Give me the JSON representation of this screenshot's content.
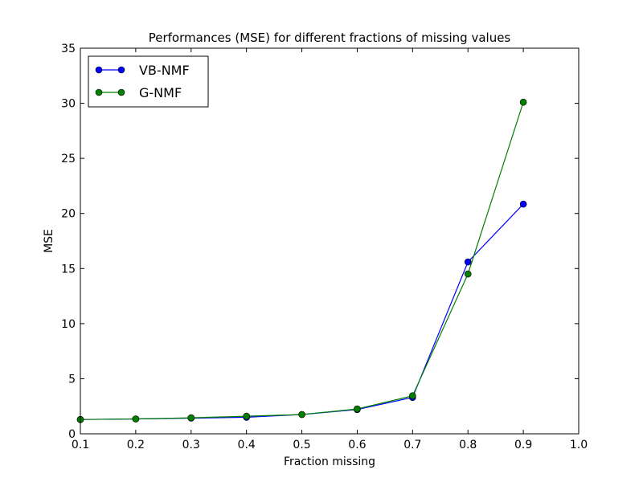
{
  "chart_data": {
    "type": "line",
    "title": "Performances (MSE) for different fractions of missing values",
    "xlabel": "Fraction missing",
    "ylabel": "MSE",
    "xlim": [
      0.1,
      1.0
    ],
    "ylim": [
      0,
      35
    ],
    "x_ticks": [
      "0.1",
      "0.2",
      "0.3",
      "0.4",
      "0.5",
      "0.6",
      "0.7",
      "0.8",
      "0.9",
      "1.0"
    ],
    "y_ticks": [
      "0",
      "5",
      "10",
      "15",
      "20",
      "25",
      "30",
      "35"
    ],
    "grid": false,
    "legend_position": "top-left",
    "x": [
      0.1,
      0.2,
      0.3,
      0.4,
      0.5,
      0.6,
      0.7,
      0.8,
      0.9
    ],
    "series": [
      {
        "name": "VB-NMF",
        "color": "#0000ff",
        "marker": "circle",
        "values": [
          1.3,
          1.35,
          1.42,
          1.5,
          1.75,
          2.2,
          3.3,
          15.6,
          20.85
        ]
      },
      {
        "name": "G-NMF",
        "color": "#007f00",
        "marker": "circle",
        "values": [
          1.3,
          1.35,
          1.45,
          1.6,
          1.75,
          2.25,
          3.45,
          14.5,
          30.1
        ]
      }
    ]
  }
}
